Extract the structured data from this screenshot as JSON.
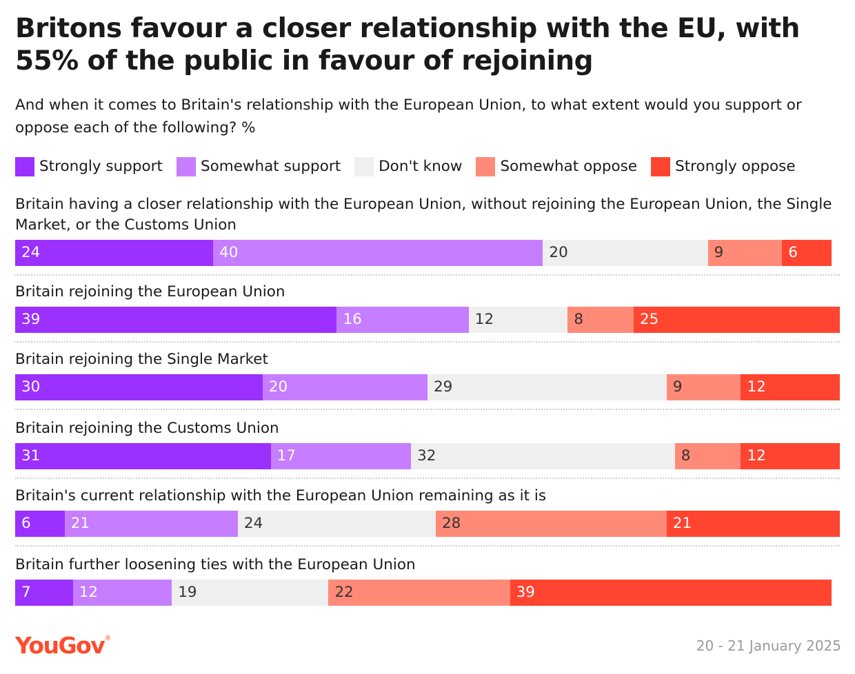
{
  "title": "Britons favour a closer relationship with the EU, with 55% of the public in favour of rejoining",
  "subtitle": "And when it comes to Britain's relationship with the European Union, to what extent would you support or oppose each of the following? %",
  "footer": {
    "brand": "YouGov",
    "brand_mark": "®",
    "date": "20 - 21 January 2025"
  },
  "colors": {
    "strongly_support": "#9b30ff",
    "somewhat_support": "#c77dff",
    "dont_know": "#efefef",
    "somewhat_oppose": "#ff8a78",
    "strongly_oppose": "#ff4430"
  },
  "chart_data": {
    "type": "bar",
    "orientation": "horizontal",
    "stacked": true,
    "title": "Britons favour a closer relationship with the EU, with 55% of the public in favour of rejoining",
    "legend_position": "top",
    "categories": [
      "Britain having a closer relationship with the European Union, without rejoining the European Union, the Single Market, or the Customs Union",
      "Britain rejoining the European Union",
      "Britain rejoining the Single Market",
      "Britain rejoining the Customs Union",
      "Britain's current relationship with the European Union remaining as it is",
      "Britain further loosening ties with the European Union"
    ],
    "series": [
      {
        "name": "Strongly support",
        "color_key": "strongly_support",
        "label_color": "#ffffff",
        "values": [
          24,
          39,
          30,
          31,
          6,
          7
        ]
      },
      {
        "name": "Somewhat support",
        "color_key": "somewhat_support",
        "label_color": "#ffffff",
        "values": [
          40,
          16,
          20,
          17,
          21,
          12
        ]
      },
      {
        "name": "Don't know",
        "color_key": "dont_know",
        "label_color": "#333333",
        "values": [
          20,
          12,
          29,
          32,
          24,
          19
        ]
      },
      {
        "name": "Somewhat oppose",
        "color_key": "somewhat_oppose",
        "label_color": "#333333",
        "values": [
          9,
          8,
          9,
          8,
          28,
          22
        ]
      },
      {
        "name": "Strongly oppose",
        "color_key": "strongly_oppose",
        "label_color": "#ffffff",
        "values": [
          6,
          25,
          12,
          12,
          21,
          39
        ]
      }
    ],
    "xlim": [
      0,
      100
    ]
  }
}
